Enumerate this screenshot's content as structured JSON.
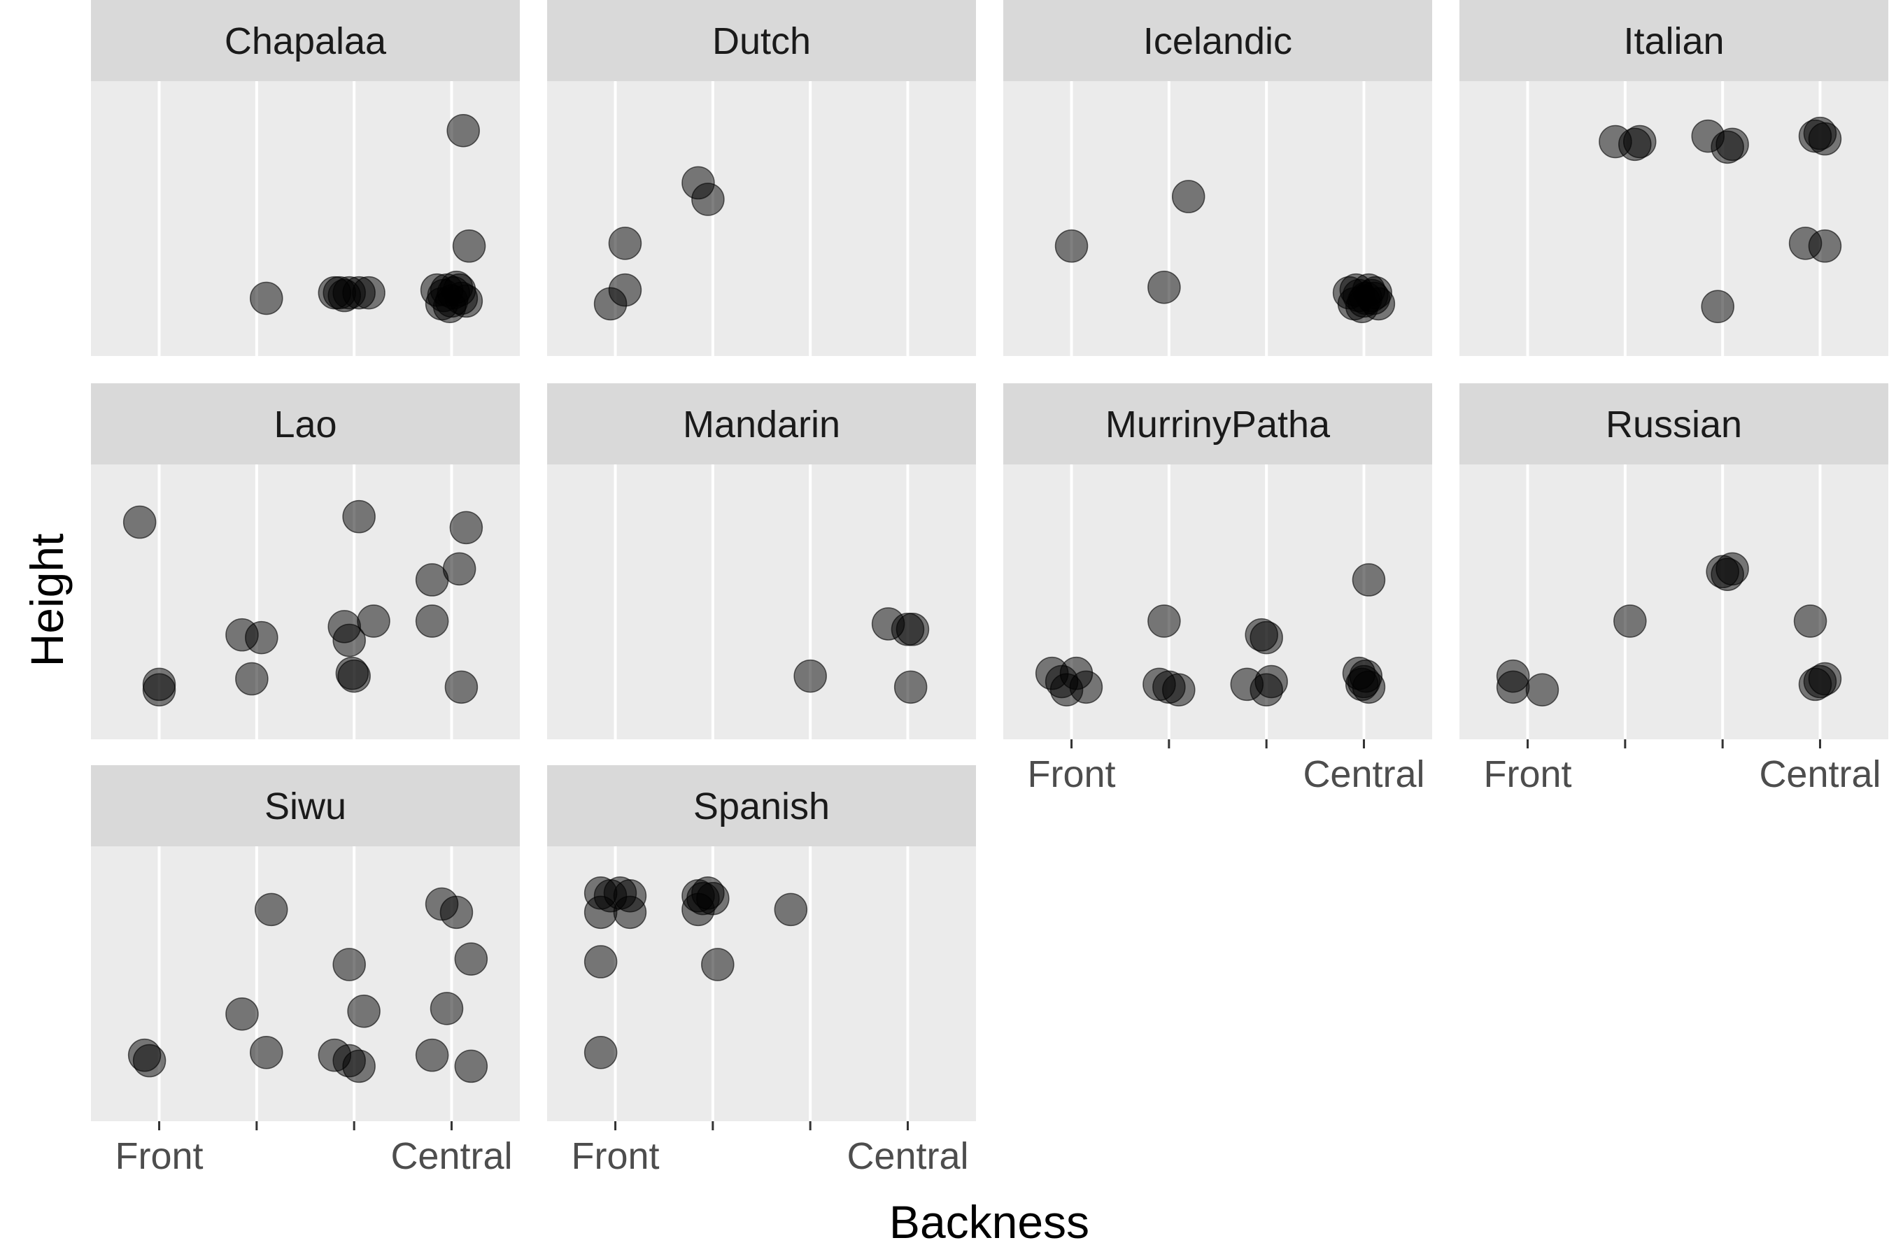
{
  "chart_data": {
    "type": "scatter",
    "xlabel": "Backness",
    "ylabel": "Height",
    "xlim": [
      0.3,
      4.7
    ],
    "ylim": [
      0,
      1
    ],
    "x_ticks": [
      {
        "value": 1,
        "label": "Front"
      },
      {
        "value": 2,
        "label": ""
      },
      {
        "value": 3,
        "label": ""
      },
      {
        "value": 4,
        "label": "Central"
      }
    ],
    "grid": true,
    "point_color": "#000000",
    "point_opacity": 0.5,
    "panel_background": "#ebebeb",
    "strip_background": "#d9d9d9",
    "grid_color": "#ffffff",
    "panels": [
      {
        "name": "Chapalaa",
        "points": [
          [
            4.12,
            0.82
          ],
          [
            4.18,
            0.4
          ],
          [
            2.1,
            0.21
          ],
          [
            2.85,
            0.23
          ],
          [
            2.95,
            0.23
          ],
          [
            3.05,
            0.23
          ],
          [
            3.15,
            0.23
          ],
          [
            2.9,
            0.22
          ],
          [
            2.8,
            0.23
          ],
          [
            3.85,
            0.24
          ],
          [
            3.9,
            0.19
          ],
          [
            3.95,
            0.24
          ],
          [
            4.0,
            0.2
          ],
          [
            4.05,
            0.25
          ],
          [
            4.1,
            0.21
          ],
          [
            4.15,
            0.2
          ],
          [
            3.92,
            0.22
          ],
          [
            4.02,
            0.23
          ],
          [
            3.98,
            0.18
          ],
          [
            4.08,
            0.24
          ]
        ]
      },
      {
        "name": "Dutch",
        "points": [
          [
            1.1,
            0.41
          ],
          [
            1.1,
            0.24
          ],
          [
            0.95,
            0.19
          ],
          [
            1.85,
            0.63
          ],
          [
            1.95,
            0.57
          ]
        ]
      },
      {
        "name": "Icelandic",
        "points": [
          [
            1.0,
            0.4
          ],
          [
            2.2,
            0.58
          ],
          [
            1.95,
            0.25
          ],
          [
            3.85,
            0.23
          ],
          [
            3.9,
            0.19
          ],
          [
            3.95,
            0.22
          ],
          [
            4.0,
            0.2
          ],
          [
            4.05,
            0.24
          ],
          [
            4.1,
            0.21
          ],
          [
            4.15,
            0.19
          ],
          [
            3.92,
            0.24
          ],
          [
            4.02,
            0.21
          ],
          [
            4.08,
            0.22
          ],
          [
            3.98,
            0.18
          ],
          [
            4.12,
            0.23
          ]
        ]
      },
      {
        "name": "Italian",
        "points": [
          [
            1.9,
            0.78
          ],
          [
            2.1,
            0.77
          ],
          [
            2.15,
            0.78
          ],
          [
            2.85,
            0.8
          ],
          [
            3.05,
            0.76
          ],
          [
            3.1,
            0.77
          ],
          [
            3.95,
            0.8
          ],
          [
            4.0,
            0.81
          ],
          [
            4.05,
            0.79
          ],
          [
            3.85,
            0.41
          ],
          [
            4.05,
            0.4
          ],
          [
            2.95,
            0.18
          ]
        ]
      },
      {
        "name": "Lao",
        "points": [
          [
            0.8,
            0.79
          ],
          [
            1.0,
            0.18
          ],
          [
            1.0,
            0.2
          ],
          [
            1.85,
            0.38
          ],
          [
            2.05,
            0.37
          ],
          [
            1.95,
            0.22
          ],
          [
            2.9,
            0.41
          ],
          [
            2.95,
            0.36
          ],
          [
            2.98,
            0.24
          ],
          [
            3.0,
            0.23
          ],
          [
            3.05,
            0.81
          ],
          [
            3.2,
            0.43
          ],
          [
            3.8,
            0.58
          ],
          [
            3.8,
            0.43
          ],
          [
            4.08,
            0.62
          ],
          [
            4.15,
            0.77
          ],
          [
            4.1,
            0.19
          ]
        ]
      },
      {
        "name": "Mandarin",
        "points": [
          [
            3.0,
            0.23
          ],
          [
            3.8,
            0.42
          ],
          [
            4.0,
            0.4
          ],
          [
            4.05,
            0.4
          ],
          [
            4.03,
            0.19
          ]
        ]
      },
      {
        "name": "MurrinyPatha",
        "points": [
          [
            0.8,
            0.24
          ],
          [
            0.9,
            0.21
          ],
          [
            0.95,
            0.18
          ],
          [
            1.05,
            0.24
          ],
          [
            1.15,
            0.19
          ],
          [
            1.9,
            0.2
          ],
          [
            2.0,
            0.19
          ],
          [
            2.1,
            0.18
          ],
          [
            1.95,
            0.43
          ],
          [
            2.8,
            0.2
          ],
          [
            2.95,
            0.38
          ],
          [
            3.0,
            0.37
          ],
          [
            3.0,
            0.18
          ],
          [
            3.05,
            0.21
          ],
          [
            3.95,
            0.24
          ],
          [
            4.0,
            0.21
          ],
          [
            4.05,
            0.19
          ],
          [
            3.98,
            0.2
          ],
          [
            4.02,
            0.23
          ],
          [
            4.05,
            0.58
          ]
        ]
      },
      {
        "name": "Russian",
        "points": [
          [
            0.85,
            0.23
          ],
          [
            0.85,
            0.19
          ],
          [
            1.15,
            0.18
          ],
          [
            2.05,
            0.43
          ],
          [
            3.0,
            0.61
          ],
          [
            3.05,
            0.6
          ],
          [
            3.1,
            0.62
          ],
          [
            3.9,
            0.43
          ],
          [
            3.95,
            0.2
          ],
          [
            4.0,
            0.21
          ],
          [
            4.05,
            0.22
          ]
        ]
      },
      {
        "name": "Siwu",
        "points": [
          [
            0.85,
            0.24
          ],
          [
            0.9,
            0.22
          ],
          [
            2.15,
            0.77
          ],
          [
            1.85,
            0.39
          ],
          [
            2.1,
            0.25
          ],
          [
            2.8,
            0.24
          ],
          [
            2.95,
            0.22
          ],
          [
            3.05,
            0.2
          ],
          [
            2.95,
            0.57
          ],
          [
            3.1,
            0.4
          ],
          [
            3.8,
            0.24
          ],
          [
            3.9,
            0.79
          ],
          [
            4.05,
            0.76
          ],
          [
            3.95,
            0.41
          ],
          [
            4.2,
            0.59
          ],
          [
            4.2,
            0.2
          ]
        ]
      },
      {
        "name": "Spanish",
        "points": [
          [
            0.85,
            0.83
          ],
          [
            0.95,
            0.82
          ],
          [
            1.05,
            0.83
          ],
          [
            1.15,
            0.82
          ],
          [
            0.85,
            0.76
          ],
          [
            1.15,
            0.76
          ],
          [
            0.85,
            0.58
          ],
          [
            0.85,
            0.25
          ],
          [
            1.85,
            0.82
          ],
          [
            1.9,
            0.81
          ],
          [
            1.95,
            0.83
          ],
          [
            2.0,
            0.81
          ],
          [
            1.85,
            0.77
          ],
          [
            2.05,
            0.57
          ],
          [
            2.8,
            0.77
          ]
        ]
      }
    ]
  }
}
